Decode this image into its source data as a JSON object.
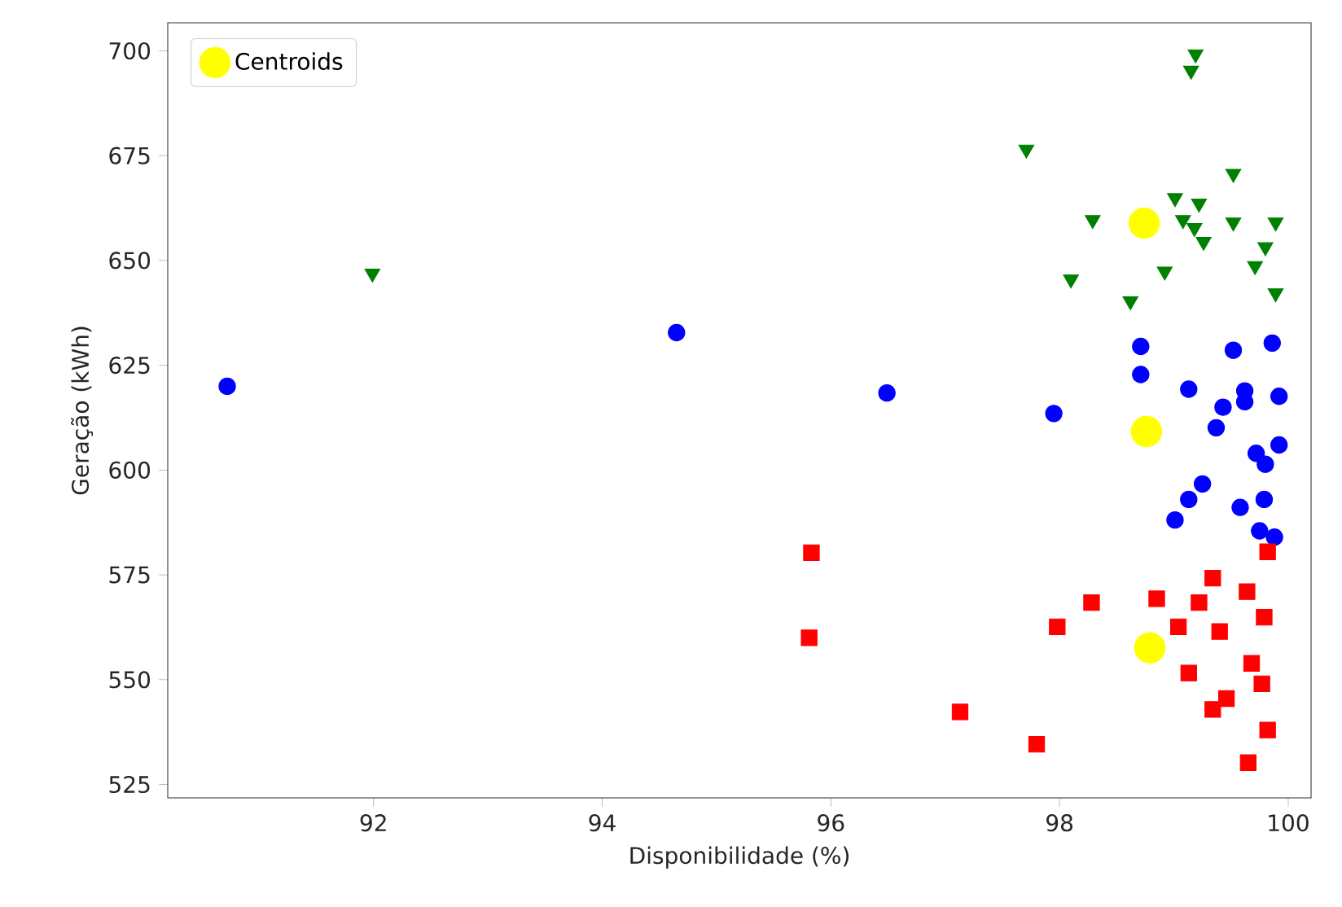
{
  "chart_data": {
    "type": "scatter",
    "xlabel": "Disponibilidade (%)",
    "ylabel": "Geração (kWh)",
    "xlim": [
      90.2,
      100.2
    ],
    "ylim": [
      521.8,
      706.7
    ],
    "xticks": [
      92,
      94,
      96,
      98,
      100
    ],
    "yticks": [
      525,
      550,
      575,
      600,
      625,
      650,
      675,
      700
    ],
    "legend": "top left",
    "series": [
      {
        "color": "#0000ff",
        "marker": "circle",
        "x": [
          90.72,
          94.65,
          96.49,
          97.95,
          98.71,
          98.71,
          99.13,
          99.52,
          99.86,
          99.62,
          99.62,
          99.43,
          99.37,
          99.92,
          99.72,
          99.92,
          99.8,
          99.25,
          99.13,
          99.01,
          99.58,
          99.79,
          99.75,
          99.88
        ],
        "values": [
          620.0,
          632.8,
          618.4,
          613.5,
          629.5,
          622.8,
          619.3,
          628.6,
          630.3,
          618.9,
          616.3,
          615.0,
          610.1,
          617.6,
          604.0,
          606.0,
          601.4,
          596.7,
          593.0,
          588.1,
          591.1,
          593.0,
          585.5,
          584.0
        ]
      },
      {
        "color": "#008000",
        "marker": "triangle",
        "x": [
          99.19,
          99.15,
          97.71,
          99.52,
          99.01,
          99.22,
          98.29,
          99.08,
          99.18,
          99.26,
          99.52,
          99.89,
          99.8,
          99.71,
          98.1,
          98.92,
          98.62,
          99.89,
          91.99
        ],
        "values": [
          699.2,
          695.3,
          676.5,
          670.7,
          664.9,
          663.6,
          659.7,
          659.7,
          657.8,
          654.5,
          659.1,
          659.1,
          653.2,
          648.7,
          645.5,
          647.4,
          640.3,
          642.2,
          646.9
        ]
      },
      {
        "color": "#ff0000",
        "marker": "square",
        "x": [
          95.83,
          95.81,
          97.13,
          97.8,
          97.98,
          98.28,
          98.85,
          99.04,
          99.22,
          99.34,
          99.64,
          99.82,
          99.79,
          99.4,
          99.13,
          99.68,
          99.77,
          99.46,
          99.34,
          99.82,
          99.65
        ],
        "values": [
          580.3,
          560.0,
          542.3,
          534.6,
          562.6,
          568.4,
          569.3,
          562.6,
          568.4,
          574.2,
          571.0,
          580.5,
          564.9,
          561.5,
          551.6,
          553.9,
          549.0,
          545.5,
          542.9,
          538.0,
          530.2
        ]
      },
      {
        "name": "Centroids",
        "color": "#ffff00",
        "marker": "circle",
        "x": [
          98.74,
          98.76,
          98.79
        ],
        "values": [
          658.9,
          609.2,
          557.6
        ]
      }
    ]
  }
}
